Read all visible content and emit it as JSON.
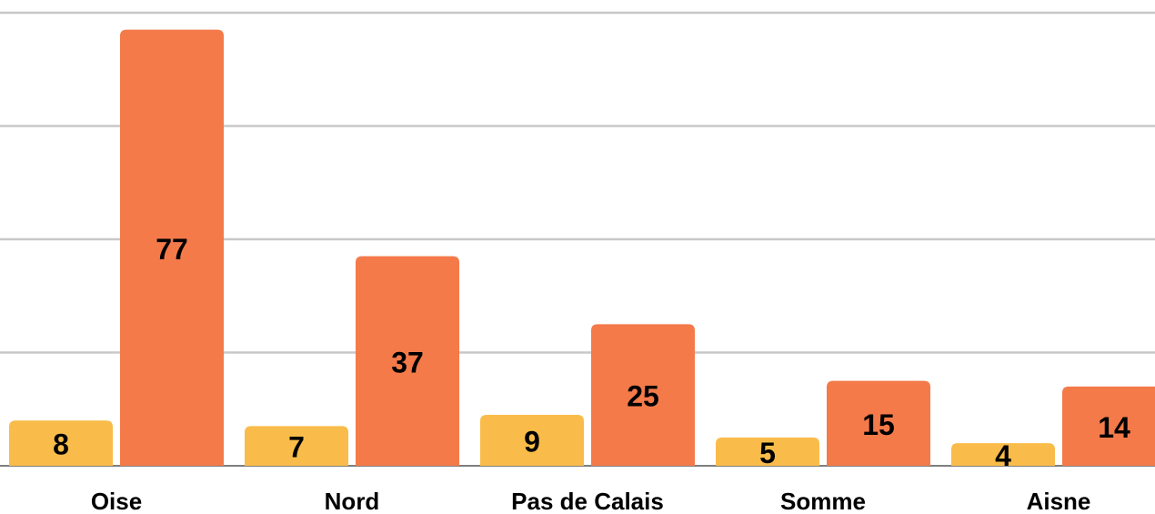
{
  "chart_data": {
    "type": "bar",
    "categories": [
      "Oise",
      "Nord",
      "Pas de Calais",
      "Somme",
      "Aisne"
    ],
    "series": [
      {
        "color": "#f9bc4a",
        "values": [
          8,
          7,
          9,
          5,
          4
        ]
      },
      {
        "color": "#f47a4a",
        "values": [
          77,
          37,
          25,
          15,
          14
        ]
      }
    ],
    "ylim": [
      0,
      80
    ],
    "yticks": [
      0,
      20,
      40,
      60,
      80
    ],
    "grid": true
  }
}
